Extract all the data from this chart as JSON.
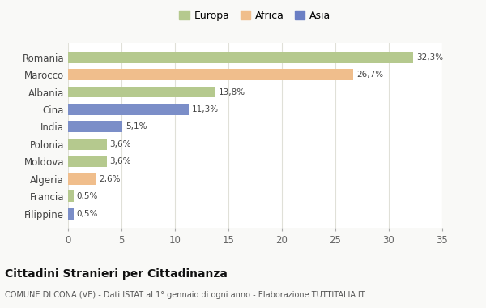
{
  "categories": [
    "Romania",
    "Marocco",
    "Albania",
    "Cina",
    "India",
    "Polonia",
    "Moldova",
    "Algeria",
    "Francia",
    "Filippine"
  ],
  "values": [
    32.3,
    26.7,
    13.8,
    11.3,
    5.1,
    3.6,
    3.6,
    2.6,
    0.5,
    0.5
  ],
  "labels": [
    "32,3%",
    "26,7%",
    "13,8%",
    "11,3%",
    "5,1%",
    "3,6%",
    "3,6%",
    "2,6%",
    "0,5%",
    "0,5%"
  ],
  "colors": [
    "#b5c98e",
    "#f0be8c",
    "#b5c98e",
    "#7b8ec8",
    "#7b8ec8",
    "#b5c98e",
    "#b5c98e",
    "#f0be8c",
    "#b5c98e",
    "#7b8ec8"
  ],
  "legend": [
    {
      "label": "Europa",
      "color": "#b5c98e"
    },
    {
      "label": "Africa",
      "color": "#f0be8c"
    },
    {
      "label": "Asia",
      "color": "#6b7fc4"
    }
  ],
  "xlim": [
    0,
    35
  ],
  "xticks": [
    0,
    5,
    10,
    15,
    20,
    25,
    30,
    35
  ],
  "title": "Cittadini Stranieri per Cittadinanza",
  "subtitle": "COMUNE DI CONA (VE) - Dati ISTAT al 1° gennaio di ogni anno - Elaborazione TUTTITALIA.IT",
  "background_color": "#f9f9f7",
  "plot_bg_color": "#ffffff"
}
